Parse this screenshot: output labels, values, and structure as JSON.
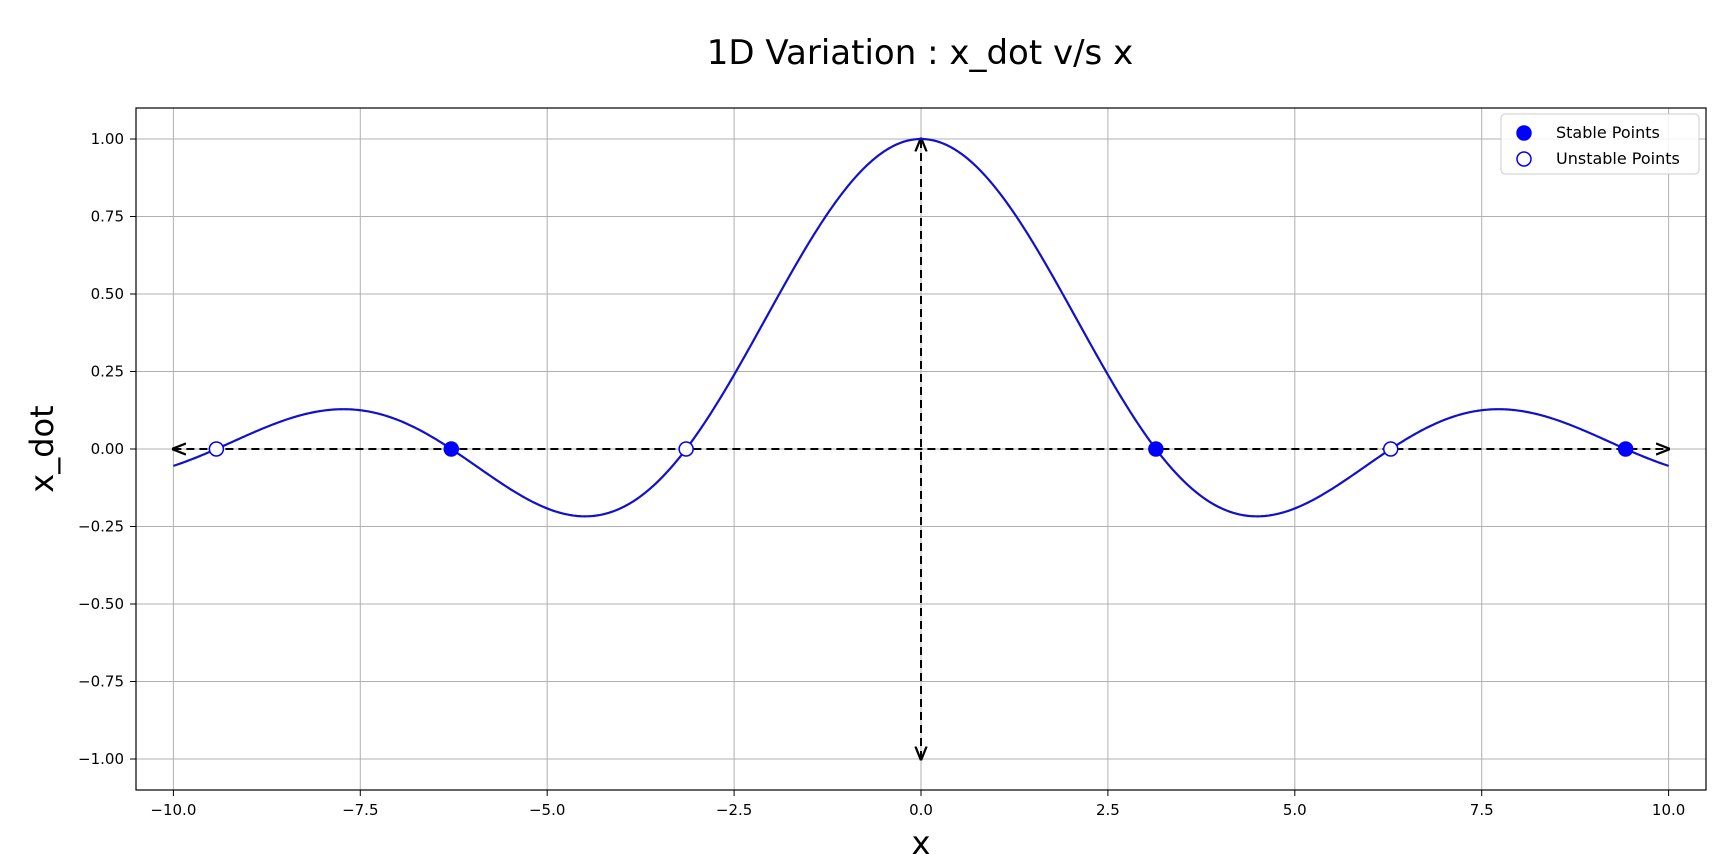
{
  "chart_data": {
    "type": "line",
    "title": "1D Variation : x_dot v/s x",
    "xlabel": "x",
    "ylabel": "x_dot",
    "xlim": [
      -10.5,
      10.5
    ],
    "ylim": [
      -1.1,
      1.1
    ],
    "grid": true,
    "legend_position": "top-right",
    "x_tick_labels": [
      "−10.0",
      "−7.5",
      "−5.0",
      "−2.5",
      "0.0",
      "2.5",
      "5.0",
      "7.5",
      "10.0"
    ],
    "x_tick_values": [
      -10,
      -7.5,
      -5,
      -2.5,
      0,
      2.5,
      5,
      7.5,
      10
    ],
    "y_tick_labels": [
      "−1.00",
      "−0.75",
      "−0.50",
      "−0.25",
      "0.00",
      "0.25",
      "0.50",
      "0.75",
      "1.00"
    ],
    "y_tick_values": [
      -1,
      -0.75,
      -0.5,
      -0.25,
      0,
      0.25,
      0.5,
      0.75,
      1
    ],
    "curve": {
      "function": "sin(x)/x",
      "x_range": [
        -10,
        10
      ],
      "color": "#1111cc"
    },
    "series": [
      {
        "name": "Stable Points",
        "marker": "filled-circle",
        "color": "#0000ff",
        "x": [
          -6.283,
          3.1416,
          9.4248
        ],
        "y": [
          0,
          0,
          0
        ]
      },
      {
        "name": "Unstable Points",
        "marker": "hollow-circle",
        "color": "#0000ff",
        "x": [
          -9.4248,
          -3.1416,
          6.283
        ],
        "y": [
          0,
          0,
          0
        ]
      }
    ]
  }
}
